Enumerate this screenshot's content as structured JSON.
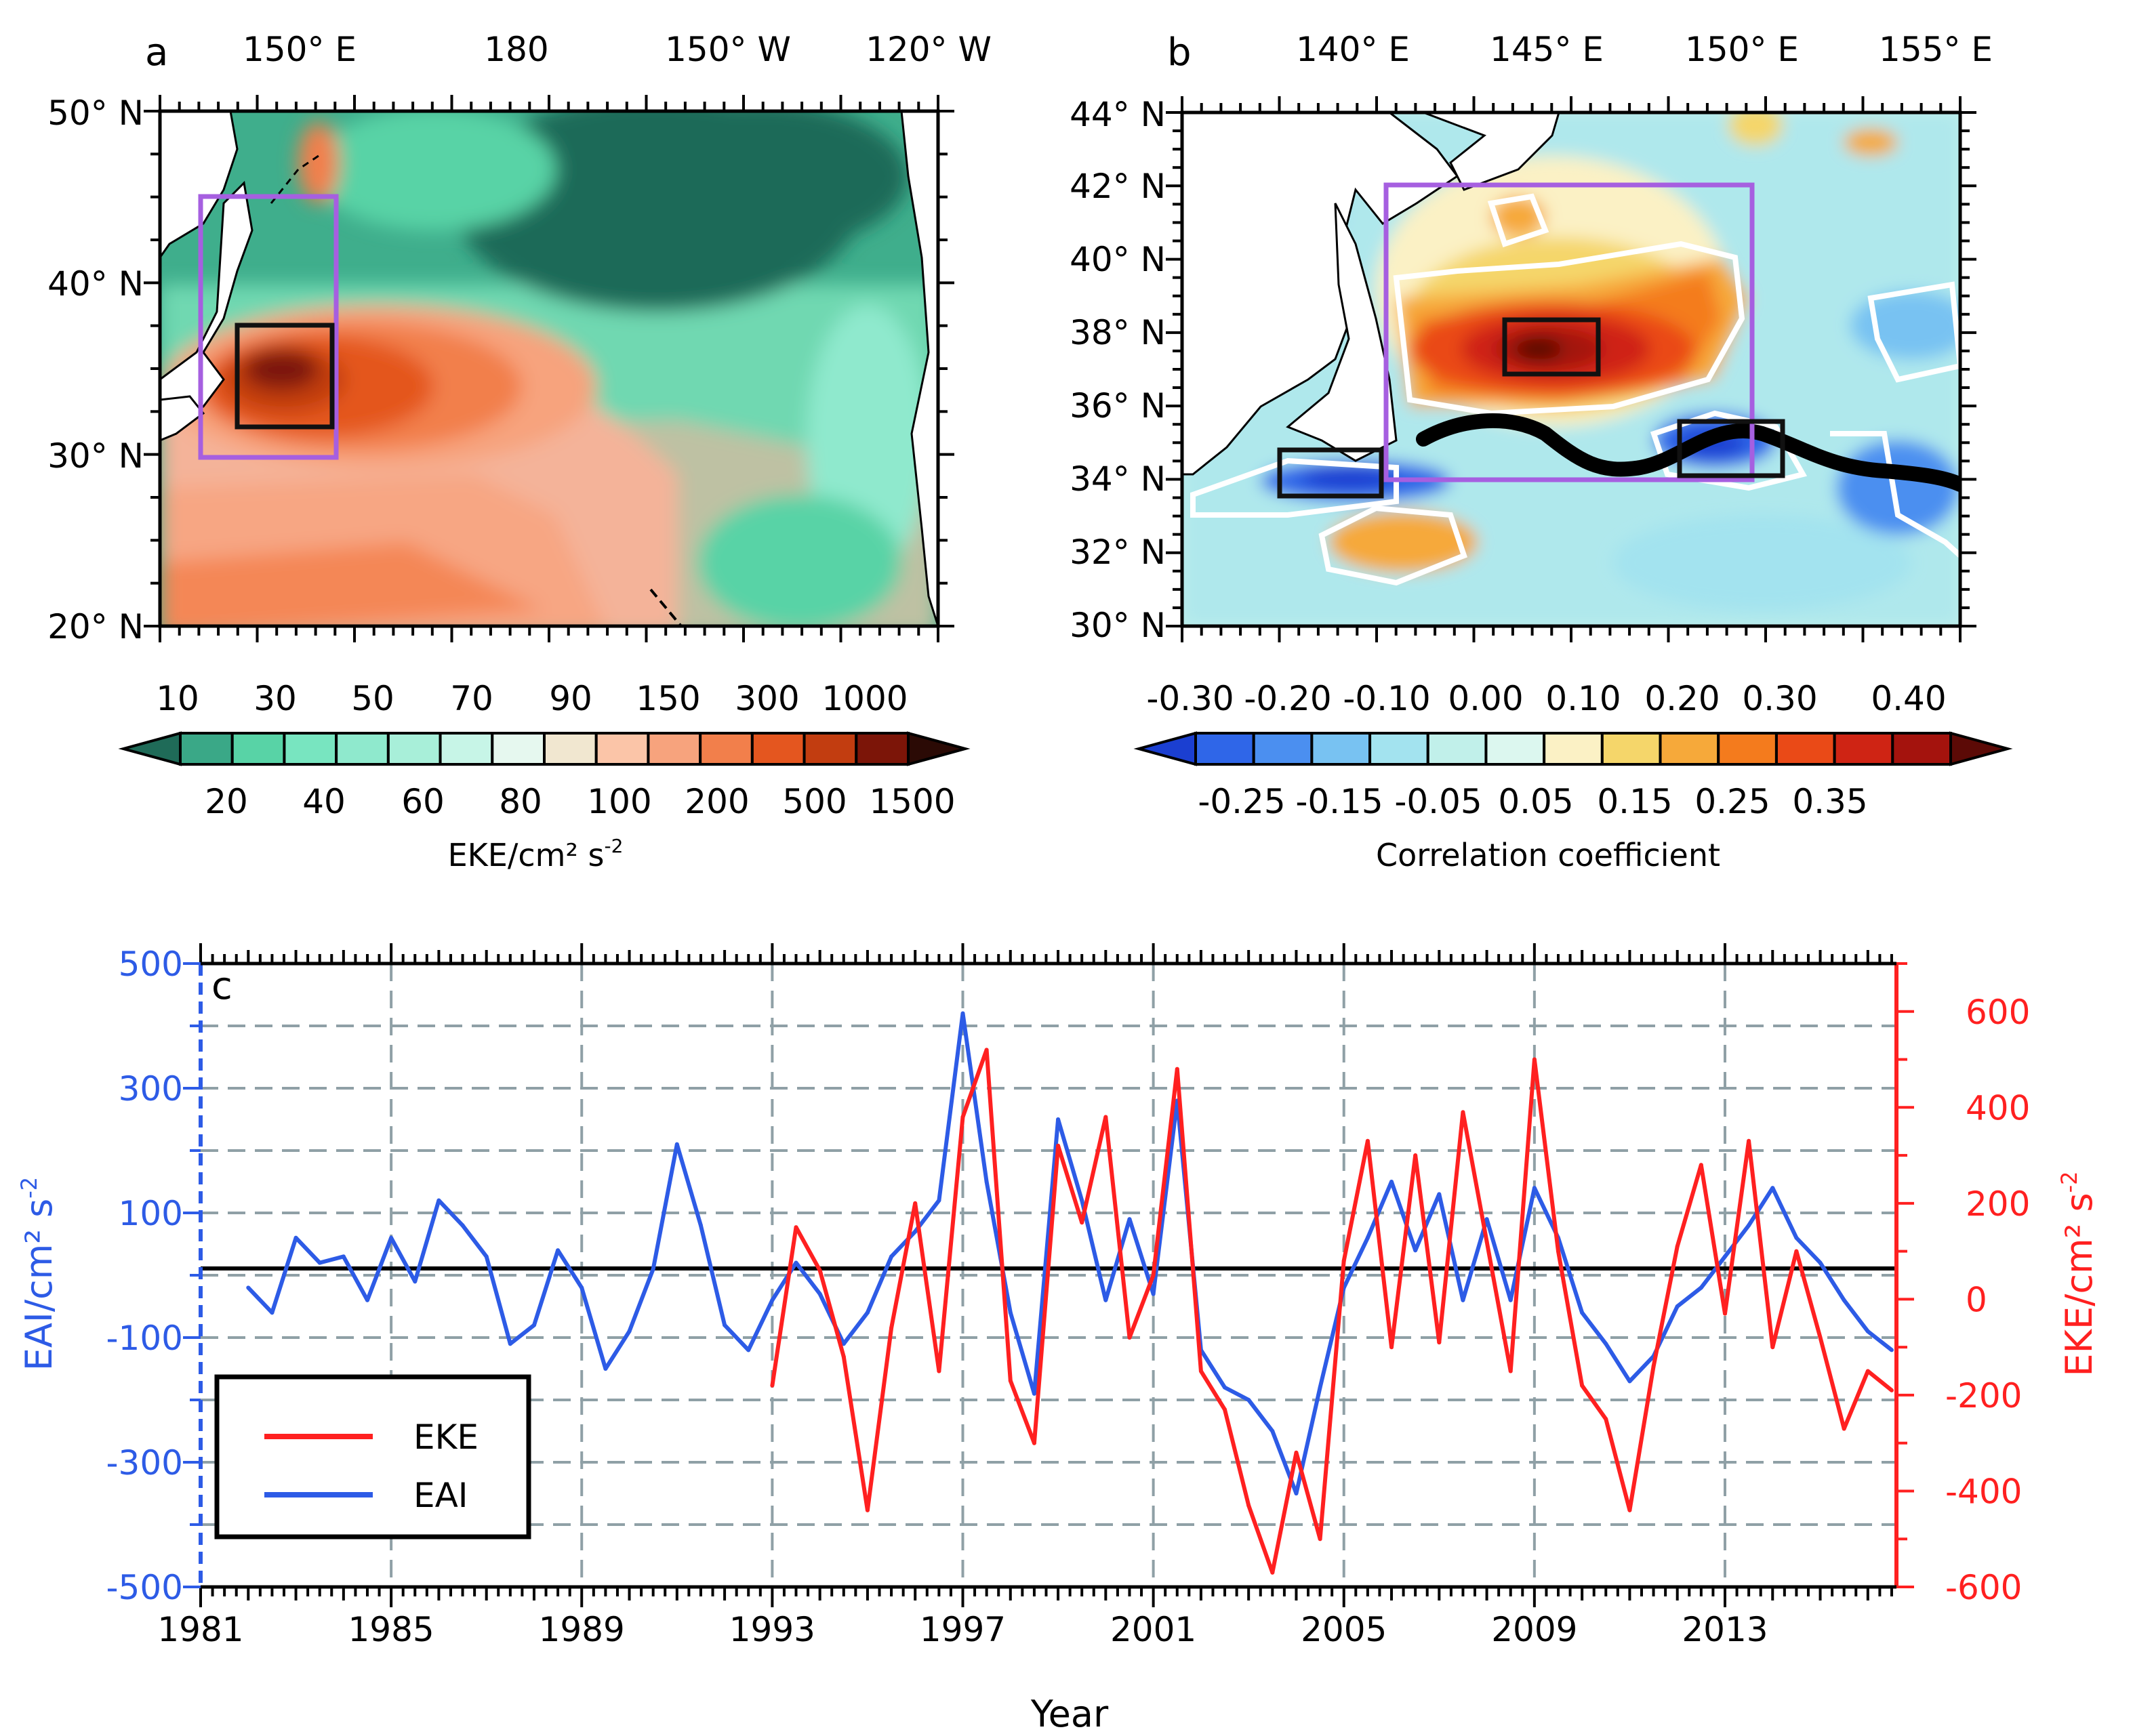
{
  "colors": {
    "eke_series": "#ff2020",
    "eai_series": "#2d5be6",
    "box_purple": "#a65fe0",
    "box_black": "#111111",
    "grid": "#8fa0a6",
    "eke_scale": [
      "#1f6b58",
      "#3aa887",
      "#58d3a6",
      "#78e5c0",
      "#8fe9cd",
      "#a8efd9",
      "#c7f5e7",
      "#e6f8ef",
      "#f1e7d0",
      "#fbc5a8",
      "#f7a37d",
      "#f27f4b",
      "#e4561f",
      "#c23d10",
      "#7c1508",
      "#2b0a05"
    ],
    "corr_scale": [
      "#1b3fd1",
      "#2f66e8",
      "#4b8ff0",
      "#78c2f2",
      "#a3e3ef",
      "#c1f0ea",
      "#dcf7ef",
      "#fbf1c5",
      "#f5d66a",
      "#f6a93a",
      "#f47b1d",
      "#ea4a17",
      "#cf2414",
      "#a4130d",
      "#5c0a06"
    ]
  },
  "panel_a": {
    "label": "a",
    "top_ticks": [
      "150° E",
      "180",
      "150° W",
      "120° W"
    ],
    "left_ticks": [
      "50° N",
      "40° N",
      "30° N",
      "20° N"
    ],
    "colorbar_top_labels": [
      "10",
      "30",
      "50",
      "70",
      "90",
      "150",
      "300",
      "1000"
    ],
    "colorbar_bottom_labels": [
      "20",
      "40",
      "60",
      "80",
      "100",
      "200",
      "500",
      "1500"
    ],
    "colorbar_title": "EKE/cm² s",
    "colorbar_title_sup": "-2"
  },
  "panel_b": {
    "label": "b",
    "top_ticks": [
      "140° E",
      "145° E",
      "150° E",
      "155° E"
    ],
    "left_ticks": [
      "44° N",
      "42° N",
      "40° N",
      "38° N",
      "36° N",
      "34° N",
      "32° N",
      "30° N"
    ],
    "colorbar_top_labels": [
      "-0.30",
      "-0.20",
      "-0.10",
      "0.00",
      "0.10",
      "0.20",
      "0.30",
      "0.40"
    ],
    "colorbar_bottom_labels": [
      "-0.25",
      "-0.15",
      "-0.05",
      "0.05",
      "0.15",
      "0.25",
      "0.35"
    ],
    "colorbar_title": "Correlation coefficient"
  },
  "panel_c": {
    "label": "c",
    "xlabel": "Year",
    "ylabel_left": "EAI/cm² s",
    "ylabel_left_sup": "-2",
    "ylabel_right": "EKE/cm² s",
    "ylabel_right_sup": "-2",
    "legend": [
      "EKE",
      "EAI"
    ]
  },
  "chart_data": [
    {
      "type": "heatmap",
      "panel": "a",
      "variable": "EKE",
      "units": "cm² s⁻²",
      "xlim": [
        "130° E",
        "112° W"
      ],
      "ylim": [
        20,
        50
      ],
      "x_ticks": [
        "150° E",
        "180",
        "150° W",
        "120° W"
      ],
      "y_ticks": [
        50,
        40,
        30,
        20
      ],
      "colorbar_levels": [
        10,
        20,
        30,
        40,
        50,
        60,
        70,
        80,
        90,
        100,
        150,
        200,
        300,
        500,
        1000,
        1500
      ],
      "annotations": [
        "purple box 142°E–150°E, 30°N–45°N",
        "black box 143°E–150°E, 32°N–37.5°N"
      ]
    },
    {
      "type": "heatmap",
      "panel": "b",
      "variable": "Correlation coefficient",
      "xlim": [
        135,
        155
      ],
      "ylim": [
        30,
        44
      ],
      "x_ticks": [
        "140° E",
        "145° E",
        "150° E",
        "155° E"
      ],
      "y_ticks": [
        44,
        42,
        40,
        38,
        36,
        34,
        32,
        30
      ],
      "colorbar_levels": [
        -0.3,
        -0.25,
        -0.2,
        -0.15,
        -0.1,
        -0.05,
        0.0,
        0.05,
        0.1,
        0.15,
        0.2,
        0.25,
        0.3,
        0.35,
        0.4
      ],
      "annotations": [
        "purple box 140°E–150°E, 34°N–42°N",
        "black boxes near 137.5°E–140°E 33.7°N–34.9°N, 143.5°E–146°E 36.9°N–38.4°N, 148.5°E–151°E 34.1°N–35.7°N",
        "thick black Kuroshio Extension path"
      ]
    },
    {
      "type": "line",
      "panel": "c",
      "xlabel": "Year",
      "ylabel_left": "EAI/cm² s⁻²",
      "ylabel_right": "EKE/cm² s⁻²",
      "xlim": [
        1981,
        2016.6
      ],
      "x_ticks": [
        1981,
        1985,
        1989,
        1993,
        1997,
        2001,
        2005,
        2009,
        2013
      ],
      "ylim_left": [
        -500,
        500
      ],
      "y_ticks_left": [
        500,
        300,
        100,
        -100,
        -300,
        -500
      ],
      "ylim_right": [
        -600,
        700
      ],
      "y_ticks_right": [
        600,
        400,
        200,
        0,
        -200,
        -400,
        -600
      ],
      "grid": true,
      "legend_position": "bottom-left",
      "series": [
        {
          "name": "EAI",
          "axis": "left",
          "color": "#2d5be6",
          "x": [
            1982.0,
            1982.5,
            1983.0,
            1983.5,
            1984.0,
            1984.5,
            1985.0,
            1985.5,
            1986.0,
            1986.5,
            1987.0,
            1987.5,
            1988.0,
            1988.5,
            1989.0,
            1989.5,
            1990.0,
            1990.5,
            1991.0,
            1991.5,
            1992.0,
            1992.5,
            1993.0,
            1993.5,
            1994.0,
            1994.5,
            1995.0,
            1995.5,
            1996.0,
            1996.5,
            1997.0,
            1997.5,
            1998.0,
            1998.5,
            1999.0,
            1999.5,
            2000.0,
            2000.5,
            2001.0,
            2001.5,
            2002.0,
            2002.5,
            2003.0,
            2003.5,
            2004.0,
            2004.5,
            2005.0,
            2005.5,
            2006.0,
            2006.5,
            2007.0,
            2007.5,
            2008.0,
            2008.5,
            2009.0,
            2009.5,
            2010.0,
            2010.5,
            2011.0,
            2011.5,
            2012.0,
            2012.5,
            2013.0,
            2013.5,
            2014.0,
            2014.5,
            2015.0,
            2015.5,
            2016.0,
            2016.5
          ],
          "values": [
            -20,
            -60,
            60,
            20,
            30,
            -40,
            60,
            -10,
            120,
            80,
            30,
            -110,
            -80,
            40,
            -20,
            -150,
            -90,
            10,
            210,
            80,
            -80,
            -120,
            -40,
            20,
            -30,
            -110,
            -60,
            30,
            70,
            120,
            420,
            150,
            -60,
            -190,
            250,
            120,
            -40,
            90,
            -30,
            280,
            -120,
            -180,
            -200,
            -250,
            -350,
            -180,
            -20,
            60,
            150,
            40,
            130,
            -40,
            90,
            -40,
            140,
            60,
            -60,
            -110,
            -170,
            -130,
            -50,
            -20,
            30,
            80,
            140,
            60,
            20,
            -40,
            -90,
            -120
          ]
        },
        {
          "name": "EKE",
          "axis": "right",
          "color": "#ff2020",
          "x": [
            1993.0,
            1993.5,
            1994.0,
            1994.5,
            1995.0,
            1995.5,
            1996.0,
            1996.5,
            1997.0,
            1997.5,
            1998.0,
            1998.5,
            1999.0,
            1999.5,
            2000.0,
            2000.5,
            2001.0,
            2001.5,
            2002.0,
            2002.5,
            2003.0,
            2003.5,
            2004.0,
            2004.5,
            2005.0,
            2005.5,
            2006.0,
            2006.5,
            2007.0,
            2007.5,
            2008.0,
            2008.5,
            2009.0,
            2009.5,
            2010.0,
            2010.5,
            2011.0,
            2011.5,
            2012.0,
            2012.5,
            2013.0,
            2013.5,
            2014.0,
            2014.5,
            2015.0,
            2015.5,
            2016.0,
            2016.5
          ],
          "values": [
            -180,
            150,
            60,
            -120,
            -440,
            -60,
            200,
            -150,
            380,
            520,
            -170,
            -300,
            320,
            160,
            380,
            -80,
            50,
            480,
            -150,
            -230,
            -430,
            -570,
            -320,
            -500,
            80,
            330,
            -100,
            300,
            -90,
            390,
            120,
            -150,
            500,
            100,
            -180,
            -250,
            -440,
            -140,
            110,
            280,
            -30,
            330,
            -100,
            100,
            -80,
            -270,
            -150,
            -190
          ]
        }
      ]
    }
  ]
}
